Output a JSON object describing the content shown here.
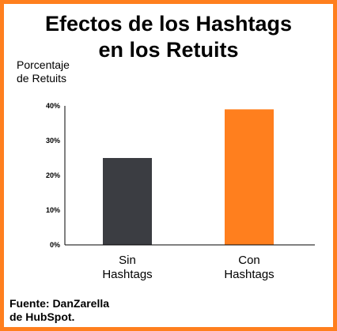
{
  "chart_data": {
    "type": "bar",
    "title_lines": [
      "Efectos de los Hashtags",
      "en los Retuits"
    ],
    "ylabel_lines": [
      "Porcentaje",
      "de Retuits"
    ],
    "categories": [
      {
        "lines": [
          "Sin",
          "Hashtags"
        ]
      },
      {
        "lines": [
          "Con",
          "Hashtags"
        ]
      }
    ],
    "values": [
      25,
      39
    ],
    "ylim": [
      0,
      40
    ],
    "yticks": [
      {
        "value": 0,
        "label": "0%"
      },
      {
        "value": 10,
        "label": "10%"
      },
      {
        "value": 20,
        "label": "20%"
      },
      {
        "value": 30,
        "label": "30%"
      },
      {
        "value": 40,
        "label": "40%"
      }
    ],
    "bar_colors": [
      "#3b3d42",
      "#ff7f1e"
    ],
    "grid": false,
    "source_lines": [
      "Fuente: DanZarella",
      "de HubSpot."
    ]
  }
}
